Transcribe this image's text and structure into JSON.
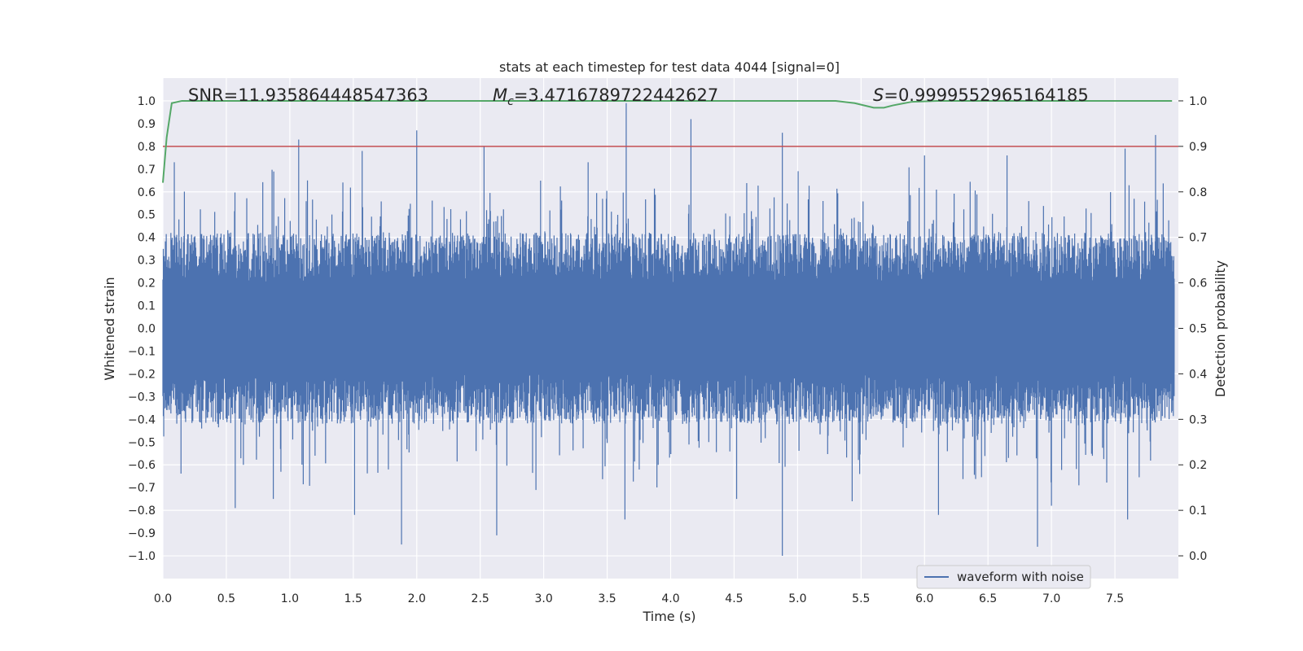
{
  "chart_data": {
    "type": "line",
    "title": "stats at each timestep for test data 4044 [signal=0]",
    "xlabel": "Time (s)",
    "ylabel_left": "Whitened strain",
    "ylabel_right": "Detection probability",
    "xlim": [
      0.0,
      8.0
    ],
    "ylim_left": [
      -1.1,
      1.1
    ],
    "ylim_right": [
      -0.05,
      1.05
    ],
    "xticks": [
      0.0,
      0.5,
      1.0,
      1.5,
      2.0,
      2.5,
      3.0,
      3.5,
      4.0,
      4.5,
      5.0,
      5.5,
      6.0,
      6.5,
      7.0,
      7.5
    ],
    "xtick_labels": [
      "0.0",
      "0.5",
      "1.0",
      "1.5",
      "2.0",
      "2.5",
      "3.0",
      "3.5",
      "4.0",
      "4.5",
      "5.0",
      "5.5",
      "6.0",
      "6.5",
      "7.0",
      "7.5"
    ],
    "yticks_left": [
      -1.0,
      -0.9,
      -0.8,
      -0.7,
      -0.6,
      -0.5,
      -0.4,
      -0.3,
      -0.2,
      -0.1,
      0.0,
      0.1,
      0.2,
      0.3,
      0.4,
      0.5,
      0.6,
      0.7,
      0.8,
      0.9,
      1.0
    ],
    "ytick_labels_left": [
      "−1.0",
      "−0.9",
      "−0.8",
      "−0.7",
      "−0.6",
      "−0.5",
      "−0.4",
      "−0.3",
      "−0.2",
      "−0.1",
      "0.0",
      "0.1",
      "0.2",
      "0.3",
      "0.4",
      "0.5",
      "0.6",
      "0.7",
      "0.8",
      "0.9",
      "1.0"
    ],
    "yticks_right": [
      0.0,
      0.1,
      0.2,
      0.3,
      0.4,
      0.5,
      0.6,
      0.7,
      0.8,
      0.9,
      1.0
    ],
    "ytick_labels_right": [
      "0.0",
      "0.1",
      "0.2",
      "0.3",
      "0.4",
      "0.5",
      "0.6",
      "0.7",
      "0.8",
      "0.9",
      "1.0"
    ],
    "grid": true,
    "legend": {
      "placement": "lower-right",
      "entries": [
        {
          "label": "waveform with noise",
          "color": "#4c72b0"
        }
      ]
    },
    "annotations": {
      "snr": "SNR=11.935864448547363",
      "mc_symbol": "M",
      "mc_subscript": "c",
      "mc_value": "=3.4716789722442627",
      "s_symbol": "S",
      "s_value": "=0.9999552965164185"
    },
    "series": [
      {
        "name": "waveform with noise",
        "axis": "left",
        "color": "#4c72b0",
        "description_values": "noisy whitened strain, dense band about ±0.2 to ±0.5 with spikes",
        "spikes": [
          [
            0.09,
            0.73
          ],
          [
            1.07,
            0.83
          ],
          [
            1.57,
            0.78
          ],
          [
            2.0,
            0.87
          ],
          [
            2.53,
            0.8
          ],
          [
            3.65,
            0.99
          ],
          [
            4.16,
            0.92
          ],
          [
            4.88,
            0.86
          ],
          [
            7.82,
            0.85
          ],
          [
            7.58,
            0.79
          ],
          [
            6.65,
            0.76
          ],
          [
            6.0,
            0.76
          ],
          [
            3.35,
            0.73
          ],
          [
            1.88,
            -0.95
          ],
          [
            4.88,
            -1.0
          ],
          [
            6.89,
            -0.96
          ],
          [
            2.63,
            -0.91
          ],
          [
            3.64,
            -0.84
          ],
          [
            1.51,
            -0.82
          ],
          [
            6.11,
            -0.82
          ],
          [
            7.6,
            -0.84
          ],
          [
            0.57,
            -0.79
          ],
          [
            4.52,
            -0.75
          ],
          [
            0.87,
            -0.75
          ],
          [
            7.0,
            -0.78
          ],
          [
            5.43,
            -0.76
          ]
        ]
      },
      {
        "name": "detection probability",
        "axis": "right",
        "color": "#55a868",
        "points": [
          [
            0.0,
            0.82
          ],
          [
            0.03,
            0.92
          ],
          [
            0.07,
            0.995
          ],
          [
            0.15,
            1.0
          ],
          [
            5.3,
            1.0
          ],
          [
            5.45,
            0.995
          ],
          [
            5.6,
            0.985
          ],
          [
            5.68,
            0.985
          ],
          [
            5.75,
            0.99
          ],
          [
            5.9,
            0.998
          ],
          [
            6.1,
            1.0
          ],
          [
            7.95,
            1.0
          ]
        ]
      },
      {
        "name": "threshold",
        "axis": "right",
        "color": "#c44e52",
        "points": [
          [
            0.0,
            0.9
          ],
          [
            8.0,
            0.9
          ]
        ]
      }
    ]
  },
  "colors": {
    "plot_bg": "#eaeaf2",
    "grid": "#ffffff",
    "waveform": "#4c72b0",
    "probability": "#55a868",
    "threshold": "#c44e52",
    "legend_bg": "#eaeaf2",
    "legend_border": "#cccccc"
  }
}
